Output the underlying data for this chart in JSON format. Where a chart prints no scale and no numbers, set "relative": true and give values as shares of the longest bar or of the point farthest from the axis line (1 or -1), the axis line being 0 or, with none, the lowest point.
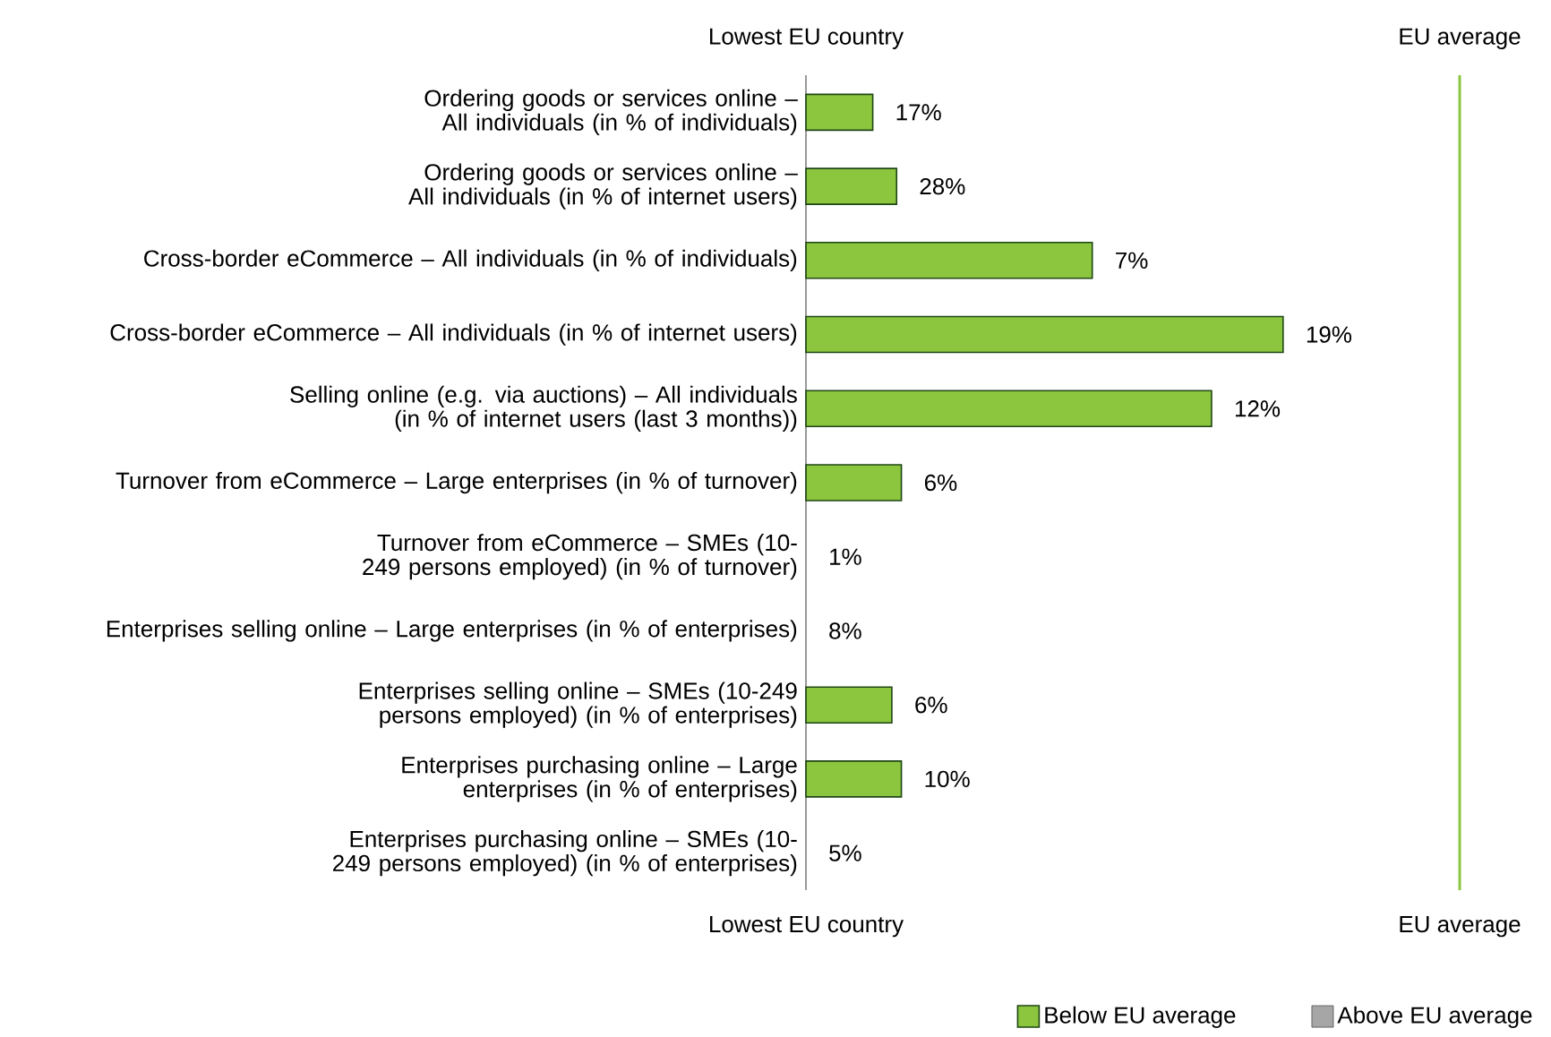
{
  "chart_data": {
    "type": "bar",
    "orientation": "horizontal",
    "relative": true,
    "categories": [
      "Ordering goods or services online – All individuals (in % of individuals)",
      "Ordering goods or services online – All individuals (in % of internet users)",
      "Cross-border eCommerce – All individuals (in % of individuals)",
      "Cross-border eCommerce – All individuals (in % of internet users)",
      "Selling online (e.g. via auctions) – All individuals (in % of internet users (last 3 months))",
      "Turnover from eCommerce – Large enterprises (in % of turnover)",
      "Turnover from eCommerce – SMEs (10-249 persons employed) (in % of turnover)",
      "Enterprises selling online – Large enterprises (in % of enterprises)",
      "Enterprises selling online – SMEs (10-249 persons employed) (in % of enterprises)",
      "Enterprises purchasing online – Large enterprises (in % of enterprises)",
      "Enterprises purchasing online – SMEs (10-249 persons employed) (in % of enterprises)"
    ],
    "series": [
      {
        "name": "Below EU average",
        "color": "#8cc63f",
        "values": [
          0.14,
          0.19,
          0.6,
          1,
          0.85,
          0.2,
          0,
          0,
          0.18,
          0.2,
          0
        ]
      },
      {
        "name": "Above EU average",
        "color": "#a6a6a6",
        "values": [
          null,
          null,
          null,
          null,
          null,
          null,
          null,
          null,
          null,
          null,
          null
        ]
      }
    ],
    "annotations": [
      {
        "text": "17%",
        "x": 0.14,
        "y": "Ordering goods or services online – All individuals (in % of individuals)"
      },
      {
        "text": "28%",
        "x": 0.19,
        "y": "Ordering goods or services online – All individuals (in % of internet users)"
      },
      {
        "text": "7%",
        "x": 0.6,
        "y": "Cross-border eCommerce – All individuals (in % of individuals)"
      },
      {
        "text": "19%",
        "x": 1,
        "y": "Cross-border eCommerce – All individuals (in % of internet users)"
      },
      {
        "text": "12%",
        "x": 0.85,
        "y": "Selling online (e.g. via auctions) – All individuals (in % of internet users (last 3 months))"
      },
      {
        "text": "6%",
        "x": 0.2,
        "y": "Turnover from eCommerce – Large enterprises (in % of turnover)"
      },
      {
        "text": "1%",
        "x": 0,
        "y": "Turnover from eCommerce – SMEs (10-249 persons employed) (in % of turnover)"
      },
      {
        "text": "8%",
        "x": 0,
        "y": "Enterprises selling online – Large enterprises (in % of enterprises)"
      },
      {
        "text": "6%",
        "x": 0.18,
        "y": "Enterprises selling online – SMEs (10-249 persons employed) (in % of enterprises)"
      },
      {
        "text": "10%",
        "x": 0.2,
        "y": "Enterprises purchasing online – Large enterprises (in % of enterprises)"
      },
      {
        "text": "5%",
        "x": 0,
        "y": "Enterprises purchasing online – SMEs (10-249 persons employed) (in % of enterprises)"
      },
      "Lowest EU country",
      "EU average",
      "Lowest EU country",
      "EU average"
    ],
    "ref_lines": [
      {
        "axis": "x",
        "value": 1.37,
        "color": "#8cc63f"
      }
    ],
    "legend": "bottom"
  }
}
